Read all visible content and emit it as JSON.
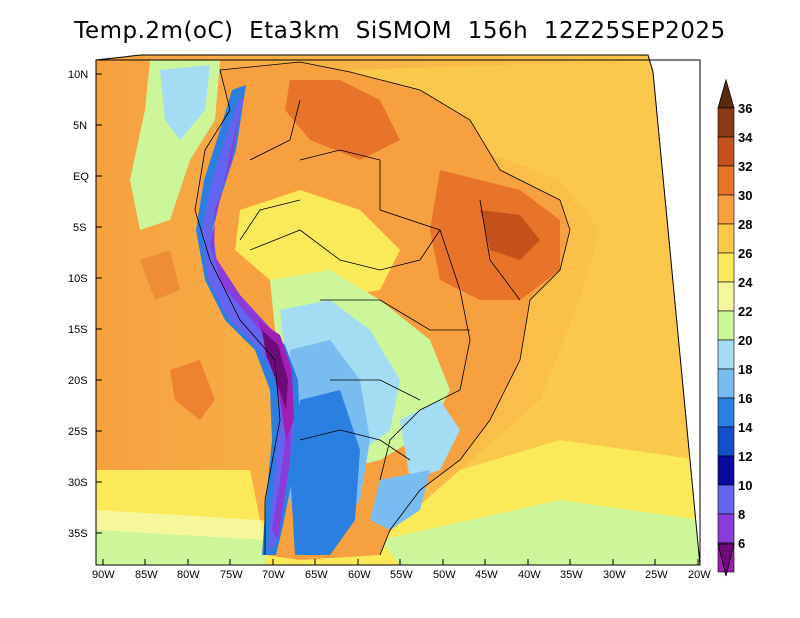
{
  "title": "Temp.2m(oC)  Eta3km  SiSMOM  156h  12Z25SEP2025",
  "map": {
    "lat_labels": [
      "10N",
      "5N",
      "EQ",
      "5S",
      "10S",
      "15S",
      "20S",
      "25S",
      "30S",
      "35S"
    ],
    "lon_labels": [
      "90W",
      "85W",
      "80W",
      "75W",
      "70W",
      "65W",
      "60W",
      "55W",
      "50W",
      "45W",
      "40W",
      "35W",
      "30W",
      "25W",
      "20W"
    ]
  },
  "colorbar": {
    "labels": [
      "36",
      "34",
      "32",
      "30",
      "28",
      "26",
      "24",
      "22",
      "20",
      "18",
      "16",
      "14",
      "12",
      "10",
      "8",
      "6"
    ],
    "colors": [
      "#5a2a10",
      "#8b3a14",
      "#c4521a",
      "#e8742a",
      "#f6a040",
      "#fac84a",
      "#faea5a",
      "#f6f69a",
      "#cdf59a",
      "#a4dcf4",
      "#78bcf0",
      "#2a7fe0",
      "#1450c8",
      "#0a0aa0",
      "#6464f0",
      "#8a3cd8",
      "#a020b4",
      "#6e0a7a"
    ]
  }
}
